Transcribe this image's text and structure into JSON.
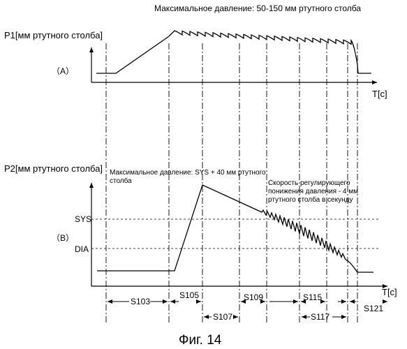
{
  "top": {
    "max_pressure_note": "Максимальное давление: 50-150 мм ртутного столба",
    "y_axis_label": "P1[мм ртутного столба]",
    "panel_label": "（A）",
    "x_axis_label": "T[c]"
  },
  "bottom": {
    "y_axis_label": "P2[мм ртутного столба]",
    "max_pressure_note_line1": "Максимальное давление: SYS + 40 мм ртутного",
    "max_pressure_note_line2": "столба",
    "rate_note_line1": "Скорость регулирующего",
    "rate_note_line2": "понижения давления - 4 мм",
    "rate_note_line3": "ртутного столба в секунду",
    "panel_label": "（B）",
    "sys_label": "SYS",
    "dia_label": "DIA",
    "x_axis_label": "T[c]"
  },
  "steps": {
    "s103": "S103",
    "s105": "S105",
    "s107": "S107",
    "s109": "S109",
    "s115": "S115",
    "s117": "S117",
    "s121": "S121"
  },
  "caption": "Фиг. 14"
}
